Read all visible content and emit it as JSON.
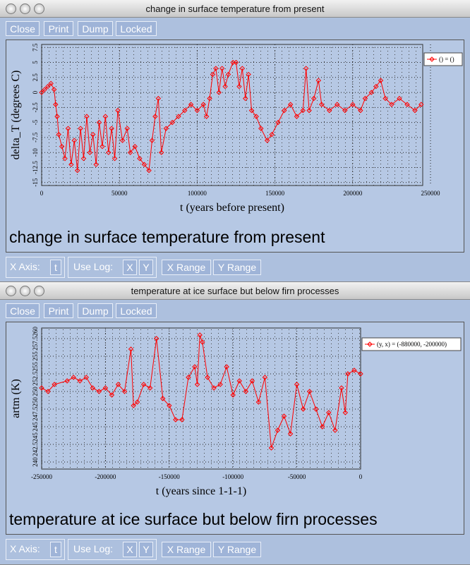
{
  "windows": [
    {
      "title": "change in surface temperature from present",
      "buttons": [
        "Close",
        "Print",
        "Dump",
        "Locked"
      ],
      "chart": {
        "type": "line",
        "color": "#ff0000",
        "grid": true,
        "xlabel": "t (years before present)",
        "ylabel": "delta_T (degrees C)",
        "legend": "() = ()",
        "xlim": [
          0,
          245000
        ],
        "ylim": [
          -15.5,
          8
        ],
        "xticks": [
          0,
          50000,
          100000,
          150000,
          200000,
          250000
        ],
        "yticks": [
          7.5,
          5,
          2.5,
          0,
          -2.5,
          -5,
          -7.5,
          -10,
          -12.5,
          -15
        ],
        "x": [
          0,
          2000,
          4000,
          6000,
          8000,
          9000,
          10000,
          11000,
          13000,
          15000,
          17000,
          19000,
          21000,
          23000,
          25000,
          27000,
          29000,
          31000,
          33000,
          35000,
          37000,
          39000,
          41000,
          43000,
          45000,
          47000,
          49000,
          52000,
          55000,
          57000,
          60000,
          63000,
          66000,
          69000,
          71000,
          73000,
          75000,
          77000,
          80000,
          84000,
          88000,
          92000,
          96000,
          100000,
          104000,
          106000,
          108000,
          110000,
          112000,
          114000,
          116000,
          118000,
          120000,
          123000,
          125000,
          127000,
          129000,
          131000,
          133000,
          135000,
          138000,
          141000,
          145000,
          148000,
          152000,
          156000,
          160000,
          164000,
          168000,
          170000,
          172000,
          175000,
          178000,
          180000,
          185000,
          190000,
          195000,
          200000,
          205000,
          208000,
          212000,
          215000,
          218000,
          221000,
          225000,
          230000,
          235000,
          240000,
          244000
        ],
        "values": [
          0,
          0.5,
          1,
          1.5,
          0.5,
          -2,
          -4,
          -7,
          -9,
          -11,
          -6,
          -12,
          -8,
          -13,
          -6,
          -11,
          -4,
          -10,
          -7,
          -12,
          -5,
          -9,
          -4,
          -10,
          -6,
          -11,
          -3,
          -8,
          -6,
          -10,
          -9,
          -11,
          -12,
          -13,
          -8,
          -4,
          -1,
          -10,
          -6,
          -5,
          -4,
          -3,
          -2,
          -3,
          -2,
          -4,
          -1,
          3,
          4,
          0,
          4,
          1,
          3,
          5,
          5,
          1,
          4,
          -1,
          3,
          -3,
          -4,
          -6,
          -8,
          -7,
          -5,
          -3,
          -2,
          -4,
          -3,
          4,
          -3,
          -1,
          2,
          -2,
          -3,
          -2,
          -3,
          -2,
          -3,
          -1,
          0,
          1,
          2,
          -1,
          -2,
          -1,
          -2,
          -3,
          -2
        ]
      },
      "caption": "change in surface temperature from present",
      "controls": {
        "x_axis": "X Axis:",
        "x_axis_value": "t",
        "use_log": "Use Log:",
        "log_x": "X",
        "log_y": "Y",
        "x_range": "X Range",
        "y_range": "Y Range"
      }
    },
    {
      "title": "temperature at ice surface but below firn processes",
      "buttons": [
        "Close",
        "Print",
        "Dump",
        "Locked"
      ],
      "chart": {
        "type": "line",
        "color": "#ff0000",
        "grid": true,
        "xlabel": "t (years since 1-1-1)",
        "ylabel": "artm (K)",
        "legend": "(y, x) = (-880000, -200000)",
        "xlim": [
          -250000,
          0
        ],
        "ylim": [
          239,
          259
        ],
        "xticks": [
          -250000,
          -200000,
          -150000,
          -100000,
          -50000,
          0
        ],
        "yticks": [
          {
            "value": 257.5,
            "label": "257.5260"
          },
          255,
          {
            "value": 252.5,
            "label": "252.5255"
          },
          250,
          {
            "value": 247.5,
            "label": "247.5250"
          },
          245,
          {
            "value": 242.5,
            "label": "242.5245"
          },
          240
        ],
        "x": [
          -250000,
          -245000,
          -240000,
          -230000,
          -225000,
          -220000,
          -215000,
          -210000,
          -205000,
          -200000,
          -195000,
          -190000,
          -185000,
          -180000,
          -178000,
          -175000,
          -170000,
          -165000,
          -160000,
          -155000,
          -150000,
          -145000,
          -140000,
          -135000,
          -130000,
          -128000,
          -126000,
          -124000,
          -120000,
          -115000,
          -110000,
          -105000,
          -100000,
          -95000,
          -90000,
          -85000,
          -80000,
          -75000,
          -70000,
          -65000,
          -60000,
          -55000,
          -50000,
          -45000,
          -40000,
          -35000,
          -30000,
          -25000,
          -20000,
          -15000,
          -12000,
          -10000,
          -5000,
          0
        ],
        "values": [
          250.5,
          250,
          251,
          251.5,
          252,
          251.5,
          252,
          250.5,
          250,
          250.5,
          249.5,
          251,
          250,
          256,
          248,
          248.5,
          251,
          250.5,
          257.5,
          249,
          248,
          246,
          246,
          252,
          253.5,
          251,
          258,
          257,
          252,
          250.5,
          251,
          253.5,
          249.5,
          251.5,
          250,
          251.5,
          248.5,
          252,
          242,
          244.5,
          246.5,
          244,
          251,
          247.5,
          250,
          247.5,
          245,
          247,
          244.5,
          250.5,
          247,
          252.5,
          253,
          252.5
        ]
      },
      "caption": "temperature at ice surface but below firn processes",
      "controls": {
        "x_axis": "X Axis:",
        "x_axis_value": "t",
        "use_log": "Use Log:",
        "log_x": "X",
        "log_y": "Y",
        "x_range": "X Range",
        "y_range": "Y Range"
      }
    }
  ]
}
